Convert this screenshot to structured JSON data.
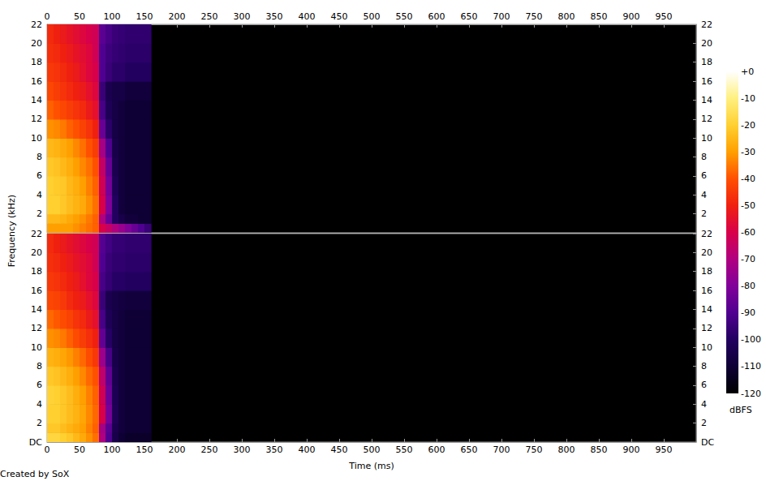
{
  "chart_data": {
    "type": "spectrogram",
    "x_label": "Time (ms)",
    "y_label": "Frequency (kHz)",
    "credit": "Created by SoX",
    "xlim": [
      0,
      1000
    ],
    "xticks": [
      0,
      50,
      100,
      150,
      200,
      250,
      300,
      350,
      400,
      450,
      500,
      550,
      600,
      650,
      700,
      750,
      800,
      850,
      900,
      950
    ],
    "time_bins": [
      0,
      10,
      20,
      30,
      40,
      50,
      60,
      70,
      80,
      90,
      100,
      110,
      120,
      130,
      140,
      150,
      160
    ],
    "freq_bins": [
      0,
      1,
      2,
      4,
      6,
      8,
      10,
      12,
      14,
      16,
      18,
      20,
      22
    ],
    "channels": [
      {
        "ylim": [
          0,
          22
        ],
        "yticks": [
          2,
          4,
          6,
          8,
          10,
          12,
          14,
          16,
          18,
          20,
          22
        ],
        "cells": [
          [
            -30,
            -30,
            -30,
            -30,
            -32,
            -34,
            -36,
            -38,
            -60,
            -65,
            -70,
            -75,
            -80,
            -85,
            -90,
            -95
          ],
          [
            -25,
            -25,
            -26,
            -28,
            -30,
            -32,
            -35,
            -38,
            -70,
            -85,
            -100,
            -105,
            -108,
            -108,
            -110,
            -110
          ],
          [
            -20,
            -20,
            -22,
            -24,
            -26,
            -28,
            -32,
            -36,
            -60,
            -80,
            -100,
            -108,
            -110,
            -110,
            -110,
            -110
          ],
          [
            -20,
            -21,
            -22,
            -25,
            -27,
            -30,
            -34,
            -38,
            -62,
            -82,
            -102,
            -108,
            -110,
            -110,
            -110,
            -110
          ],
          [
            -22,
            -23,
            -25,
            -27,
            -30,
            -33,
            -36,
            -40,
            -65,
            -85,
            -104,
            -108,
            -110,
            -110,
            -110,
            -110
          ],
          [
            -25,
            -26,
            -28,
            -30,
            -33,
            -36,
            -40,
            -44,
            -72,
            -90,
            -105,
            -108,
            -110,
            -110,
            -110,
            -110
          ],
          [
            -32,
            -33,
            -35,
            -38,
            -40,
            -43,
            -46,
            -50,
            -85,
            -98,
            -106,
            -108,
            -110,
            -110,
            -110,
            -110
          ],
          [
            -38,
            -40,
            -42,
            -44,
            -46,
            -48,
            -52,
            -55,
            -92,
            -102,
            -106,
            -108,
            -110,
            -110,
            -110,
            -110
          ],
          [
            -42,
            -44,
            -46,
            -48,
            -50,
            -52,
            -55,
            -58,
            -95,
            -104,
            -106,
            -106,
            -108,
            -108,
            -108,
            -108
          ],
          [
            -45,
            -46,
            -48,
            -50,
            -52,
            -55,
            -58,
            -60,
            -90,
            -95,
            -98,
            -98,
            -100,
            -100,
            -100,
            -100
          ],
          [
            -47,
            -48,
            -50,
            -52,
            -54,
            -56,
            -58,
            -62,
            -90,
            -94,
            -96,
            -97,
            -98,
            -98,
            -98,
            -98
          ],
          [
            -48,
            -50,
            -52,
            -54,
            -56,
            -58,
            -60,
            -62,
            -88,
            -92,
            -95,
            -96,
            -97,
            -97,
            -97,
            -97
          ]
        ]
      },
      {
        "ylim": [
          0,
          22
        ],
        "yticks": [
          {
            "value": 0,
            "label": "DC"
          },
          2,
          4,
          6,
          8,
          10,
          12,
          14,
          16,
          18,
          20,
          22
        ],
        "cells": [
          [
            -18,
            -18,
            -20,
            -22,
            -25,
            -28,
            -32,
            -36,
            -70,
            -90,
            -105,
            -110,
            -112,
            -112,
            -112,
            -112
          ],
          [
            -22,
            -22,
            -24,
            -26,
            -28,
            -30,
            -34,
            -38,
            -72,
            -88,
            -104,
            -108,
            -110,
            -110,
            -110,
            -110
          ],
          [
            -20,
            -20,
            -22,
            -24,
            -26,
            -29,
            -33,
            -37,
            -60,
            -82,
            -102,
            -108,
            -110,
            -110,
            -110,
            -110
          ],
          [
            -19,
            -20,
            -22,
            -24,
            -27,
            -30,
            -34,
            -38,
            -62,
            -84,
            -103,
            -108,
            -110,
            -110,
            -110,
            -110
          ],
          [
            -22,
            -23,
            -25,
            -27,
            -30,
            -33,
            -37,
            -40,
            -66,
            -86,
            -104,
            -108,
            -110,
            -110,
            -110,
            -110
          ],
          [
            -26,
            -27,
            -29,
            -31,
            -34,
            -37,
            -41,
            -45,
            -74,
            -92,
            -105,
            -108,
            -110,
            -110,
            -110,
            -110
          ],
          [
            -32,
            -33,
            -35,
            -38,
            -41,
            -44,
            -47,
            -50,
            -86,
            -99,
            -106,
            -108,
            -110,
            -110,
            -110,
            -110
          ],
          [
            -37,
            -39,
            -41,
            -43,
            -46,
            -48,
            -52,
            -55,
            -92,
            -102,
            -106,
            -108,
            -110,
            -110,
            -110,
            -110
          ],
          [
            -42,
            -43,
            -45,
            -48,
            -50,
            -52,
            -55,
            -58,
            -95,
            -104,
            -106,
            -107,
            -108,
            -108,
            -108,
            -108
          ],
          [
            -45,
            -46,
            -48,
            -50,
            -52,
            -55,
            -58,
            -60,
            -92,
            -96,
            -99,
            -99,
            -100,
            -100,
            -100,
            -100
          ],
          [
            -47,
            -48,
            -50,
            -52,
            -54,
            -56,
            -58,
            -62,
            -90,
            -95,
            -97,
            -97,
            -98,
            -98,
            -98,
            -98
          ],
          [
            -48,
            -50,
            -52,
            -54,
            -56,
            -58,
            -60,
            -62,
            -89,
            -93,
            -96,
            -96,
            -97,
            -97,
            -97,
            -97
          ]
        ]
      }
    ],
    "colorbar": {
      "label": "dBFS",
      "range": [
        -120,
        0
      ],
      "ticks": [
        {
          "value": 0,
          "label": "+0"
        },
        -10,
        -20,
        -30,
        -40,
        -50,
        -60,
        -70,
        -80,
        -90,
        -100,
        -110,
        -120
      ]
    }
  }
}
